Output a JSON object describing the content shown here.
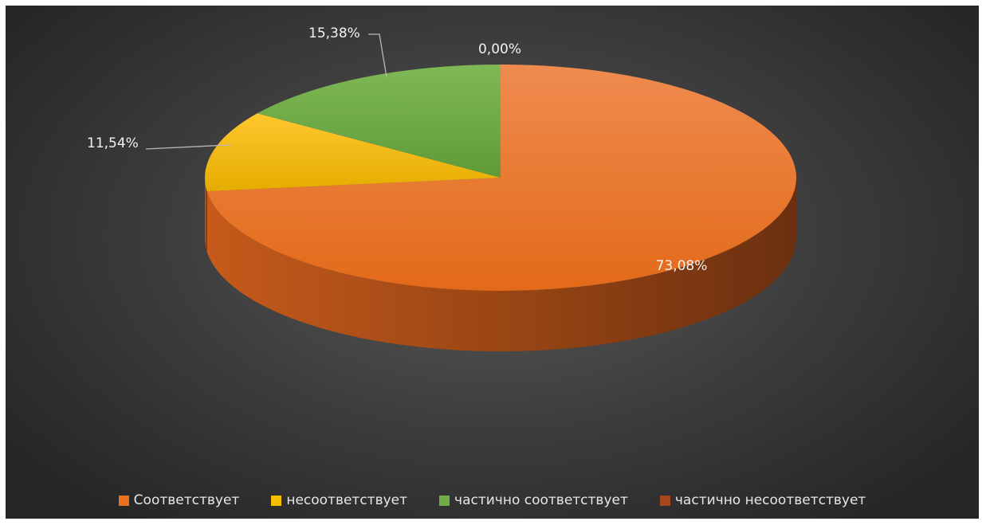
{
  "chart_data": {
    "type": "pie",
    "title": "",
    "style": "3d",
    "categories": [
      "Соответствует",
      "несоответствует",
      "частично соответствует",
      "частично несоответствует"
    ],
    "values": [
      73.08,
      11.54,
      15.38,
      0.0
    ],
    "data_labels": [
      "73,08%",
      "11,54%",
      "15,38%",
      "0,00%"
    ],
    "colors": [
      "#E8711F",
      "#F5BE00",
      "#70AD47",
      "#A8451C"
    ],
    "legend_position": "bottom",
    "background": "#3a3a3a"
  }
}
